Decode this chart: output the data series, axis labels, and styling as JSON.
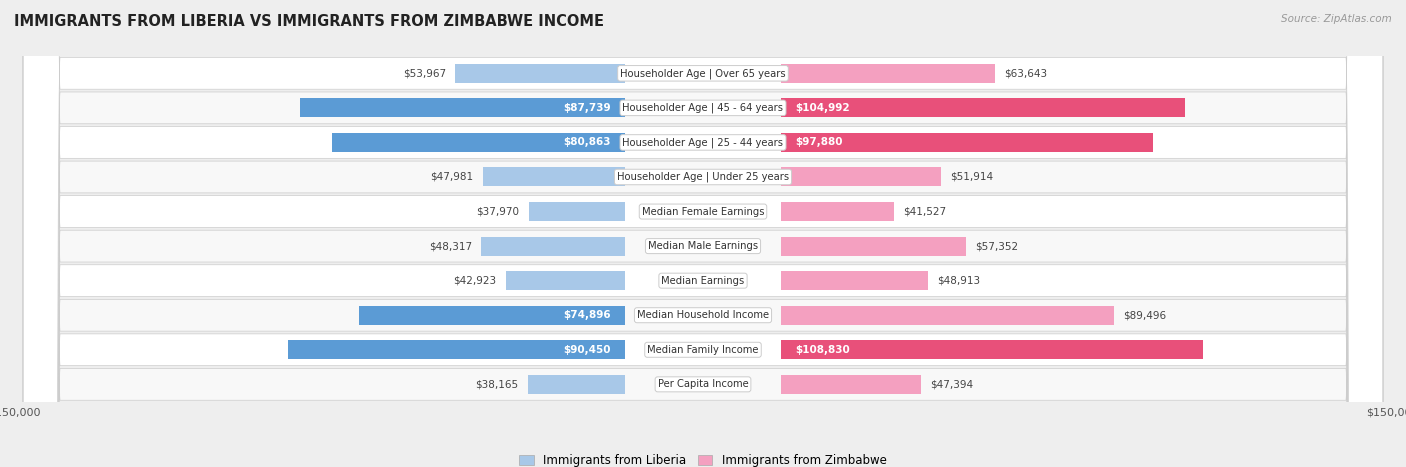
{
  "title": "IMMIGRANTS FROM LIBERIA VS IMMIGRANTS FROM ZIMBABWE INCOME",
  "source": "Source: ZipAtlas.com",
  "categories": [
    "Per Capita Income",
    "Median Family Income",
    "Median Household Income",
    "Median Earnings",
    "Median Male Earnings",
    "Median Female Earnings",
    "Householder Age | Under 25 years",
    "Householder Age | 25 - 44 years",
    "Householder Age | 45 - 64 years",
    "Householder Age | Over 65 years"
  ],
  "liberia_values": [
    38165,
    90450,
    74896,
    42923,
    48317,
    37970,
    47981,
    80863,
    87739,
    53967
  ],
  "zimbabwe_values": [
    47394,
    108830,
    89496,
    48913,
    57352,
    41527,
    51914,
    97880,
    104992,
    63643
  ],
  "liberia_labels": [
    "$38,165",
    "$90,450",
    "$74,896",
    "$42,923",
    "$48,317",
    "$37,970",
    "$47,981",
    "$80,863",
    "$87,739",
    "$53,967"
  ],
  "zimbabwe_labels": [
    "$47,394",
    "$108,830",
    "$89,496",
    "$48,913",
    "$57,352",
    "$41,527",
    "$51,914",
    "$97,880",
    "$104,992",
    "$63,643"
  ],
  "liberia_color_light": "#a8c8e8",
  "liberia_color_dark": "#5b9bd5",
  "zimbabwe_color_light": "#f4a0c0",
  "zimbabwe_color_dark": "#e8507a",
  "liberia_dark_threshold": 70000,
  "zimbabwe_dark_threshold": 90000,
  "max_value": 150000,
  "legend_liberia": "Immigrants from Liberia",
  "legend_zimbabwe": "Immigrants from Zimbabwe",
  "background_color": "#eeeeee",
  "row_bg_even": "#f8f8f8",
  "row_bg_odd": "#ffffff"
}
